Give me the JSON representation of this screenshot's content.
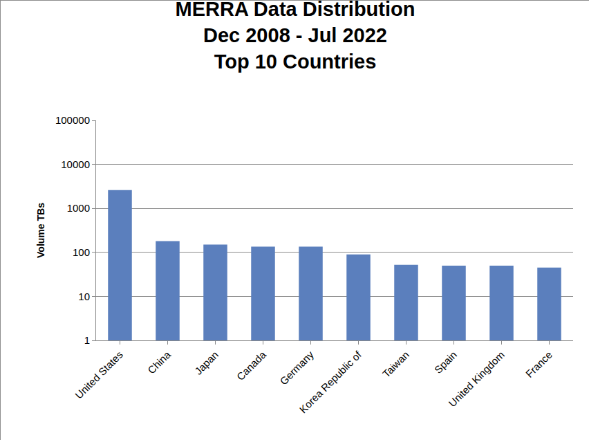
{
  "chart_data": {
    "type": "bar",
    "title": "MERRA Data Distribution\nDec 2008 - Jul 2022\nTop 10 Countries",
    "y_label": "Volume TBs",
    "categories": [
      "United States",
      "China",
      "Japan",
      "Canada",
      "Germany",
      "Korea Republic of",
      "Taiwan",
      "Spain",
      "United Kingdom",
      "France"
    ],
    "values": [
      2600,
      180,
      150,
      135,
      135,
      90,
      52,
      50,
      50,
      45
    ],
    "color": "#5b7fbd",
    "log": "y",
    "ylim": [
      1,
      100000
    ],
    "yticks": [
      1,
      10,
      100,
      1000,
      10000,
      100000
    ],
    "grid": true
  }
}
